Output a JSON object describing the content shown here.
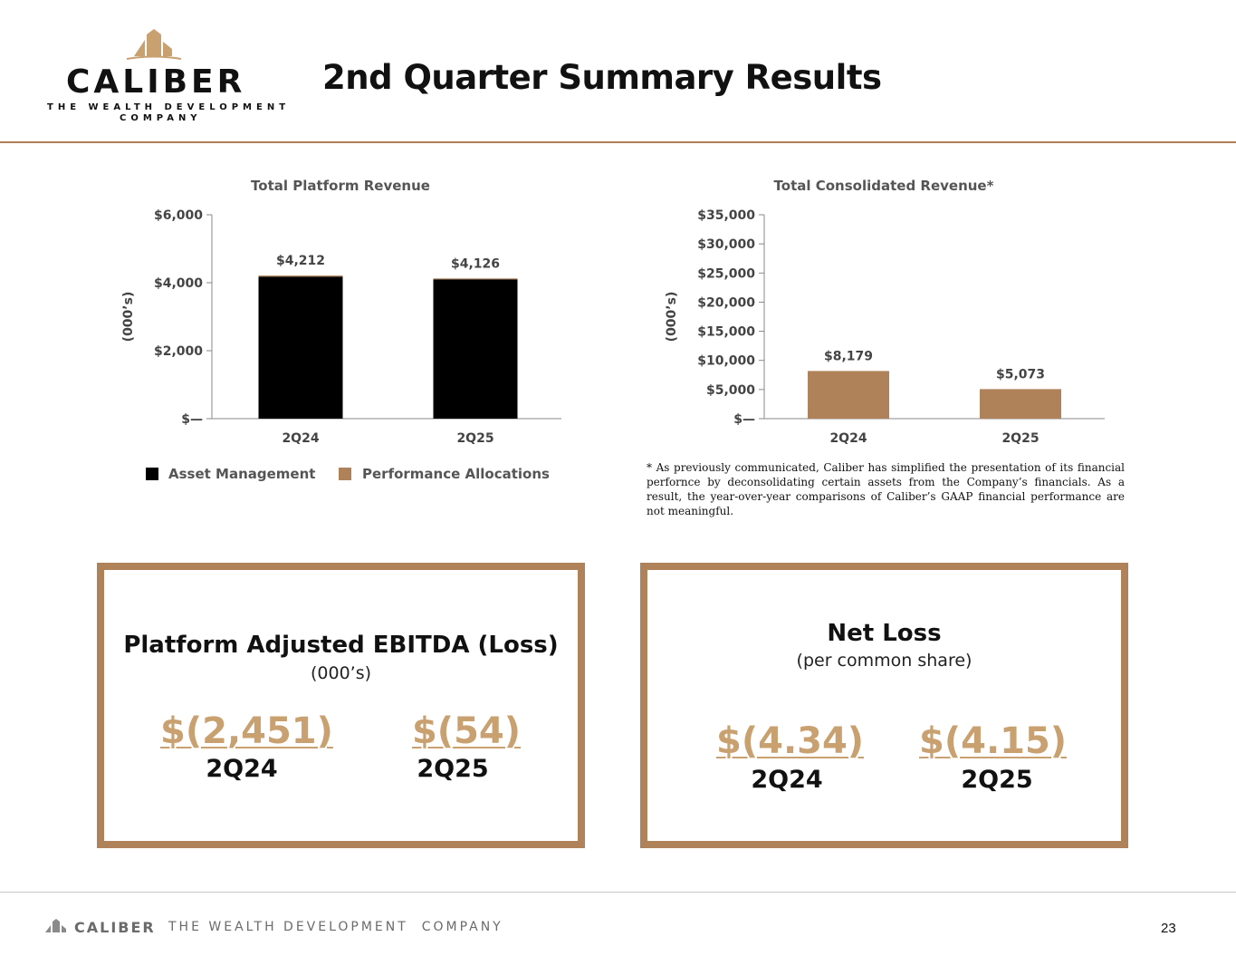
{
  "header": {
    "logo_word": "CALIBER",
    "logo_tagline_1": "THE WEALTH DEVELOPMENT",
    "logo_tagline_2": "COMPANY",
    "title": "2nd Quarter Summary Results"
  },
  "colors": {
    "accent": "#af825a",
    "accent_light": "#c9a06f",
    "asset_management": "#000000",
    "performance_allocations": "#af825a"
  },
  "chart_data": [
    {
      "type": "bar",
      "stacked": true,
      "title": "Total Platform Revenue",
      "ylabel": "(000’s)",
      "categories": [
        "2Q24",
        "2Q25"
      ],
      "series": [
        {
          "name": "Asset Management",
          "values": [
            4180,
            4100
          ],
          "color": "#000000"
        },
        {
          "name": "Performance Allocations",
          "values": [
            32,
            26
          ],
          "color": "#af825a"
        }
      ],
      "data_labels": [
        "$4,212",
        "$4,126"
      ],
      "ylim": [
        0,
        6000
      ],
      "yticks": [
        0,
        2000,
        4000,
        6000
      ],
      "ytick_labels": [
        "$—",
        "$2,000",
        "$4,000",
        "$6,000"
      ],
      "legend_position": "bottom",
      "grid": false
    },
    {
      "type": "bar",
      "title": "Total Consolidated Revenue*",
      "ylabel": "(000’s)",
      "categories": [
        "2Q24",
        "2Q25"
      ],
      "values": [
        8179,
        5073
      ],
      "data_labels": [
        "$8,179",
        "$5,073"
      ],
      "color": "#af825a",
      "ylim": [
        0,
        35000
      ],
      "yticks": [
        0,
        5000,
        10000,
        15000,
        20000,
        25000,
        30000,
        35000
      ],
      "ytick_labels": [
        "$—",
        "$5,000",
        "$10,000",
        "$15,000",
        "$20,000",
        "$25,000",
        "$30,000",
        "$35,000"
      ],
      "grid": false
    }
  ],
  "footnote": "* As previously communicated, Caliber has simplified the presentation of its financial perfornce by deconsolidating certain assets from the Company’s financials. As a result, the year-over-year comparisons of Caliber’s GAAP financial performance are not meaningful.",
  "kpis": [
    {
      "title": "Platform Adjusted EBITDA (Loss)",
      "subtitle": "(000’s)",
      "items": [
        {
          "value": "$(2,451)",
          "period": "2Q24"
        },
        {
          "value": "$(54)",
          "period": "2Q25"
        }
      ]
    },
    {
      "title": "Net Loss",
      "subtitle": "(per common share)",
      "items": [
        {
          "value": "$(4.34)",
          "period": "2Q24"
        },
        {
          "value": "$(4.15)",
          "period": "2Q25"
        }
      ]
    }
  ],
  "footer": {
    "name": "CALIBER",
    "tagline": "THE WEALTH DEVELOPMENT  COMPANY",
    "page_number": "23"
  }
}
